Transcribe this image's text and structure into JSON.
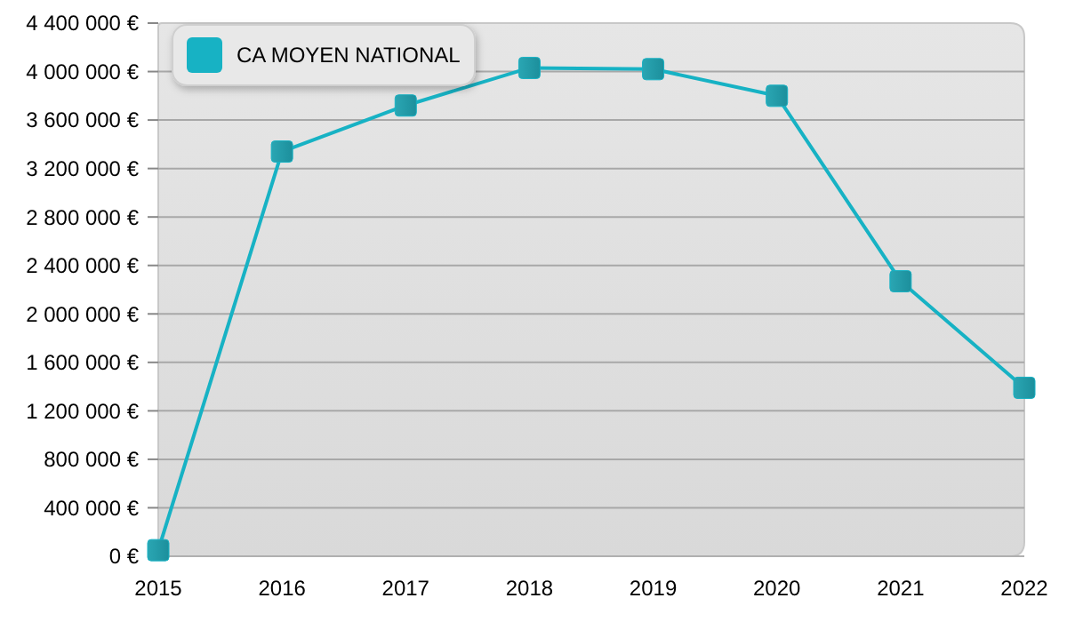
{
  "chart_data": {
    "type": "line",
    "x": [
      2015,
      2016,
      2017,
      2018,
      2019,
      2020,
      2021,
      2022
    ],
    "series": [
      {
        "name": "CA MOYEN NATIONAL",
        "color": "#17b2c4",
        "values": [
          50000,
          3340000,
          3720000,
          4030000,
          4020000,
          3800000,
          2270000,
          1390000
        ]
      }
    ],
    "xlim": [
      2015,
      2022
    ],
    "xticks": [
      2015,
      2016,
      2017,
      2018,
      2019,
      2020,
      2021,
      2022
    ],
    "ylim": [
      0,
      4400000
    ],
    "yticks": [
      {
        "value": 0,
        "label": "0 €"
      },
      {
        "value": 400000,
        "label": "400 000 €"
      },
      {
        "value": 800000,
        "label": "800 000 €"
      },
      {
        "value": 1200000,
        "label": "1 200 000 €"
      },
      {
        "value": 1600000,
        "label": "1 600 000 €"
      },
      {
        "value": 2000000,
        "label": "2 000 000 €"
      },
      {
        "value": 2400000,
        "label": "2 400 000 €"
      },
      {
        "value": 2800000,
        "label": "2 800 000 €"
      },
      {
        "value": 3200000,
        "label": "3 200 000 €"
      },
      {
        "value": 3600000,
        "label": "3 600 000 €"
      },
      {
        "value": 4000000,
        "label": "4 000 000 €"
      },
      {
        "value": 4400000,
        "label": "4 400 000 €"
      }
    ],
    "grid": "y",
    "legend": "top left",
    "marker": "square",
    "line_style": "solid"
  }
}
